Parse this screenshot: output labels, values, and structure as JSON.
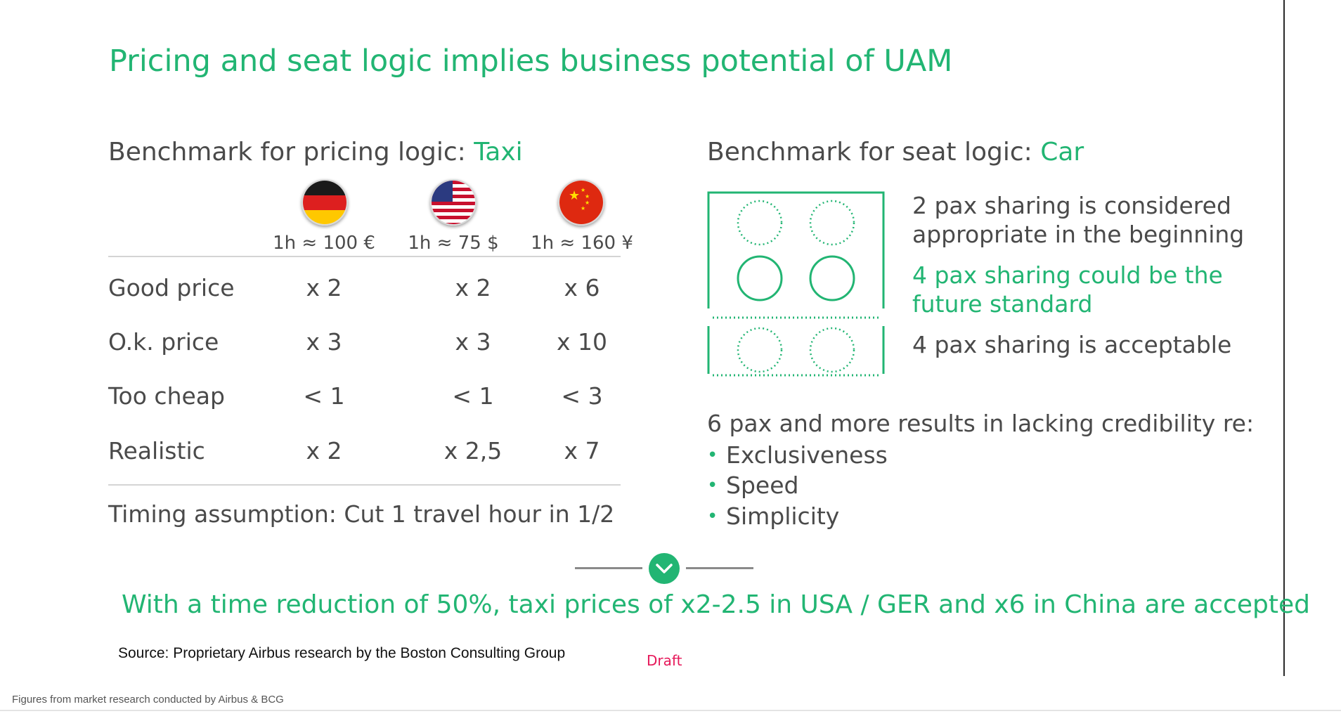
{
  "slide": {
    "title": "Pricing and seat logic implies business potential of UAM",
    "pricing": {
      "heading_prefix": "Benchmark for pricing logic: ",
      "heading_highlight": "Taxi",
      "columns": [
        {
          "flag_icon": "germany-flag-icon",
          "rate": "1h ≈ 100 €"
        },
        {
          "flag_icon": "usa-flag-icon",
          "rate": "1h ≈ 75 $"
        },
        {
          "flag_icon": "china-flag-icon",
          "rate": "1h ≈ 160 ¥"
        }
      ],
      "rows": [
        {
          "label": "Good price",
          "values": [
            "x 2",
            "x 2",
            "x 6"
          ]
        },
        {
          "label": "O.k. price",
          "values": [
            "x 3",
            "x 3",
            "x 10"
          ]
        },
        {
          "label": "Too cheap",
          "values": [
            "< 1",
            "< 1",
            "< 3"
          ]
        },
        {
          "label": "Realistic",
          "values": [
            "x 2",
            "x 2,5",
            "x 7"
          ]
        }
      ],
      "timing": "Timing assumption: Cut 1 travel hour in 1/2"
    },
    "seats": {
      "heading_prefix": "Benchmark for seat logic: ",
      "heading_highlight": "Car",
      "item1_line1": "2 pax sharing is considered",
      "item1_line2": "appropriate in the beginning",
      "item2_line1": "4 pax sharing could be the",
      "item2_line2": "future standard",
      "item3": "4 pax sharing is acceptable",
      "six_pax": "6 pax and more results in lacking credibility re:",
      "bullets": [
        "Exclusiveness",
        "Speed",
        "Simplicity"
      ]
    },
    "conclusion": "With a time reduction of 50%, taxi prices of x2-2.5 in USA / GER and x6 in China are accepted",
    "source": "Source:  Proprietary Airbus research by the Boston Consulting Group",
    "draft": "Draft"
  },
  "caption": "Figures from market research conducted by Airbus & BCG",
  "colors": {
    "accent": "#22b573",
    "text": "#4a4a4a",
    "draft": "#e6195a"
  }
}
